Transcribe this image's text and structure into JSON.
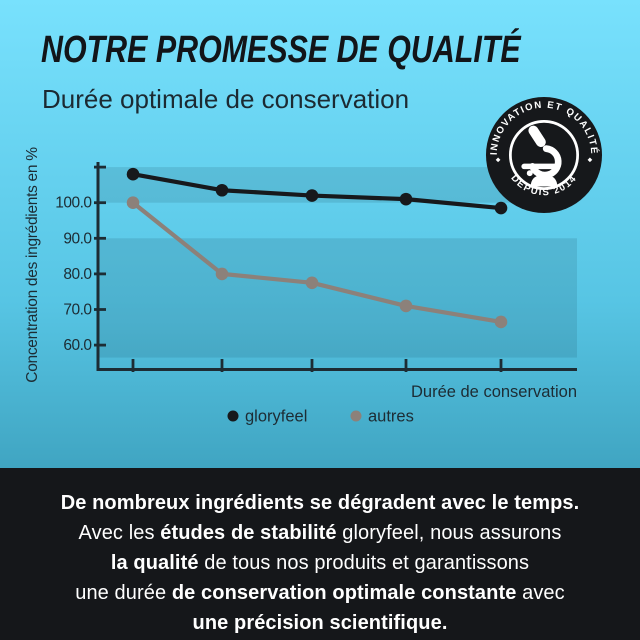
{
  "header": {
    "title": "NOTRE PROMESSE DE QUALITÉ",
    "subtitle": "Durée optimale de conservation"
  },
  "badge": {
    "arc_top": "INNOVATION ET QUALITÉ",
    "arc_bottom": "DEPUIS 2014",
    "icon": "microscope",
    "bg_color": "#16181b",
    "fg_color": "#ffffff"
  },
  "chart_data": {
    "type": "line",
    "x": [
      1,
      2,
      3,
      4,
      5
    ],
    "x_tick_labels": [
      "",
      "",
      "",
      "",
      ""
    ],
    "series": [
      {
        "name": "gloryfeel",
        "color": "#17191c",
        "values": [
          108,
          103.5,
          102,
          101,
          98.5
        ]
      },
      {
        "name": "autres",
        "color": "#8c817a",
        "values": [
          100,
          80,
          77.5,
          71,
          66.5
        ]
      }
    ],
    "xlabel": "Durée de conservation",
    "ylabel": "Concentration des ingrédients en %",
    "y_ticks": [
      60,
      70,
      80,
      90,
      100
    ],
    "y_tick_labels": [
      "60.0",
      "70.0",
      "80.0",
      "90.0",
      "100.0"
    ],
    "ylim": [
      56.5,
      110
    ],
    "grid": false,
    "legend": [
      "gloryfeel",
      "autres"
    ],
    "legend_position": "bottom",
    "shaded_value_ranges": [
      [
        100,
        110
      ],
      [
        56.5,
        90
      ]
    ]
  },
  "footer": {
    "bg_color": "#15171a",
    "lines": [
      [
        {
          "t": "De nombreux ingrédients se dégradent avec le temps.",
          "b": true
        }
      ],
      [
        {
          "t": "Avec les ",
          "b": false
        },
        {
          "t": "études de stabilité",
          "b": true
        },
        {
          "t": " gloryfeel, nous assurons",
          "b": false
        }
      ],
      [
        {
          "t": "la qualité",
          "b": true
        },
        {
          "t": " de tous nos produits et garantissons",
          "b": false
        }
      ],
      [
        {
          "t": "une durée ",
          "b": false
        },
        {
          "t": "de conservation optimale constante",
          "b": true
        },
        {
          "t": " avec",
          "b": false
        }
      ],
      [
        {
          "t": "une précision scientifique.",
          "b": true
        }
      ]
    ]
  },
  "colors": {
    "bg_top": "#78e1fd",
    "bg_bottom": "#3fa3c0",
    "shade_band": "rgba(13,53,70,0.13)",
    "axis": "#1d2c34",
    "text_dark": "#1c2a32"
  }
}
